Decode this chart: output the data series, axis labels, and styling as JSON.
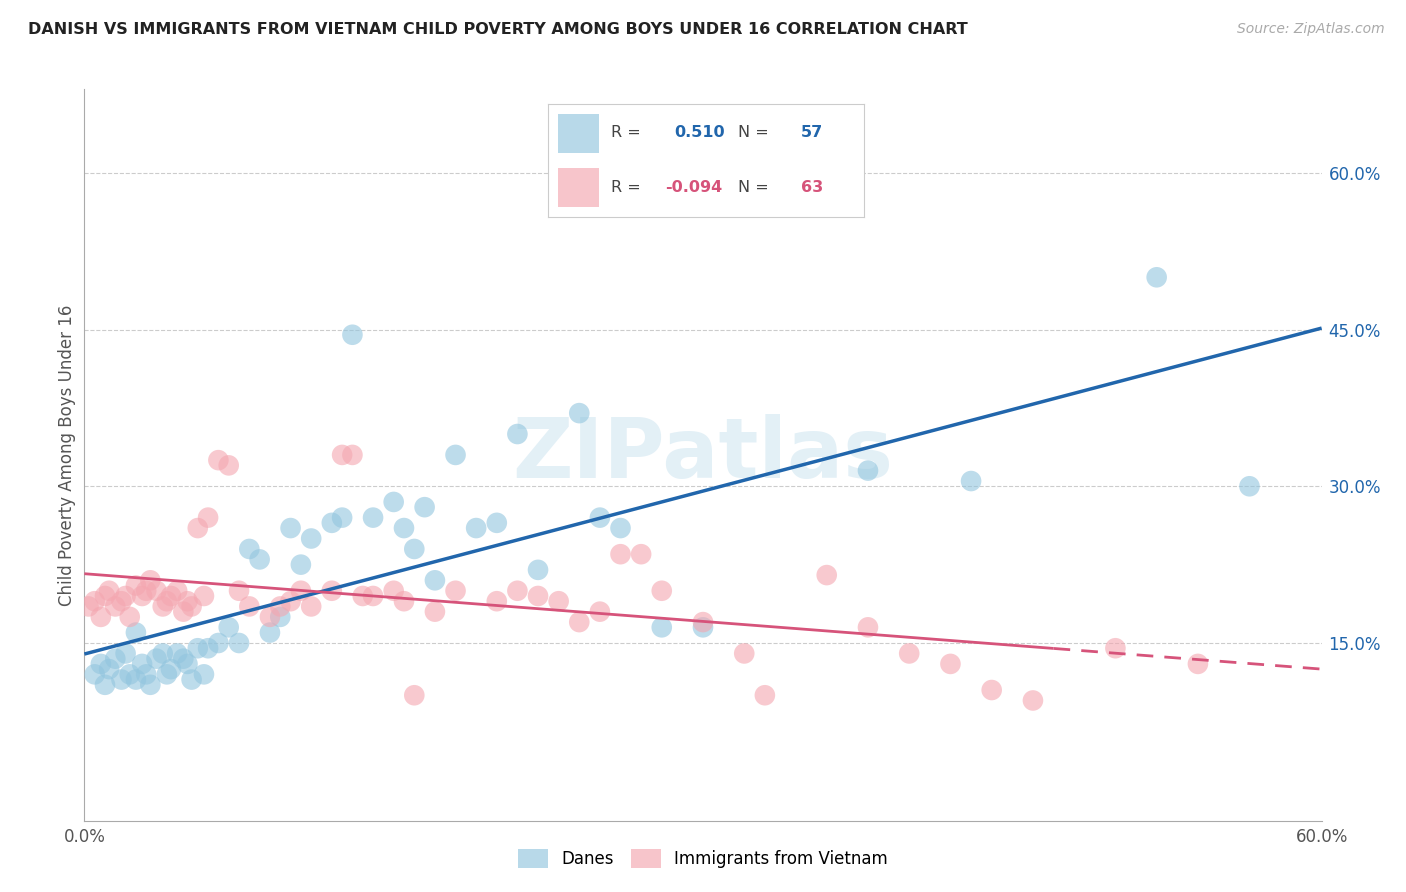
{
  "title": "DANISH VS IMMIGRANTS FROM VIETNAM CHILD POVERTY AMONG BOYS UNDER 16 CORRELATION CHART",
  "source": "Source: ZipAtlas.com",
  "ylabel": "Child Poverty Among Boys Under 16",
  "xlim": [
    0.0,
    0.6
  ],
  "ylim": [
    -0.02,
    0.68
  ],
  "yticks": [
    0.15,
    0.3,
    0.45,
    0.6
  ],
  "ytick_labels": [
    "15.0%",
    "30.0%",
    "45.0%",
    "60.0%"
  ],
  "danes_color": "#92c5de",
  "vietnam_color": "#f4a6b0",
  "danes_R": "0.510",
  "danes_N": "57",
  "vietnam_R": "-0.094",
  "vietnam_N": "63",
  "danes_line_color": "#2166ac",
  "vietnam_line_color": "#d6537a",
  "watermark": "ZIPatlas",
  "danes_x": [
    0.005,
    0.008,
    0.01,
    0.012,
    0.015,
    0.018,
    0.02,
    0.022,
    0.025,
    0.025,
    0.028,
    0.03,
    0.032,
    0.035,
    0.038,
    0.04,
    0.042,
    0.045,
    0.048,
    0.05,
    0.052,
    0.055,
    0.058,
    0.06,
    0.065,
    0.07,
    0.075,
    0.08,
    0.085,
    0.09,
    0.095,
    0.1,
    0.105,
    0.11,
    0.12,
    0.125,
    0.13,
    0.14,
    0.15,
    0.155,
    0.16,
    0.165,
    0.17,
    0.18,
    0.19,
    0.2,
    0.21,
    0.22,
    0.24,
    0.25,
    0.26,
    0.28,
    0.3,
    0.38,
    0.43,
    0.52,
    0.565
  ],
  "danes_y": [
    0.12,
    0.13,
    0.11,
    0.125,
    0.135,
    0.115,
    0.14,
    0.12,
    0.115,
    0.16,
    0.13,
    0.12,
    0.11,
    0.135,
    0.14,
    0.12,
    0.125,
    0.14,
    0.135,
    0.13,
    0.115,
    0.145,
    0.12,
    0.145,
    0.15,
    0.165,
    0.15,
    0.24,
    0.23,
    0.16,
    0.175,
    0.26,
    0.225,
    0.25,
    0.265,
    0.27,
    0.445,
    0.27,
    0.285,
    0.26,
    0.24,
    0.28,
    0.21,
    0.33,
    0.26,
    0.265,
    0.35,
    0.22,
    0.37,
    0.27,
    0.26,
    0.165,
    0.165,
    0.315,
    0.305,
    0.5,
    0.3
  ],
  "vietnam_x": [
    0.002,
    0.005,
    0.008,
    0.01,
    0.012,
    0.015,
    0.018,
    0.02,
    0.022,
    0.025,
    0.028,
    0.03,
    0.032,
    0.035,
    0.038,
    0.04,
    0.042,
    0.045,
    0.048,
    0.05,
    0.052,
    0.055,
    0.058,
    0.06,
    0.065,
    0.07,
    0.075,
    0.08,
    0.09,
    0.095,
    0.1,
    0.105,
    0.11,
    0.12,
    0.125,
    0.13,
    0.135,
    0.14,
    0.15,
    0.155,
    0.16,
    0.17,
    0.18,
    0.2,
    0.21,
    0.22,
    0.23,
    0.24,
    0.25,
    0.26,
    0.27,
    0.28,
    0.3,
    0.32,
    0.33,
    0.36,
    0.38,
    0.4,
    0.42,
    0.44,
    0.46,
    0.5,
    0.54
  ],
  "vietnam_y": [
    0.185,
    0.19,
    0.175,
    0.195,
    0.2,
    0.185,
    0.19,
    0.195,
    0.175,
    0.205,
    0.195,
    0.2,
    0.21,
    0.2,
    0.185,
    0.19,
    0.195,
    0.2,
    0.18,
    0.19,
    0.185,
    0.26,
    0.195,
    0.27,
    0.325,
    0.32,
    0.2,
    0.185,
    0.175,
    0.185,
    0.19,
    0.2,
    0.185,
    0.2,
    0.33,
    0.33,
    0.195,
    0.195,
    0.2,
    0.19,
    0.1,
    0.18,
    0.2,
    0.19,
    0.2,
    0.195,
    0.19,
    0.17,
    0.18,
    0.235,
    0.235,
    0.2,
    0.17,
    0.14,
    0.1,
    0.215,
    0.165,
    0.14,
    0.13,
    0.105,
    0.095,
    0.145,
    0.13
  ]
}
